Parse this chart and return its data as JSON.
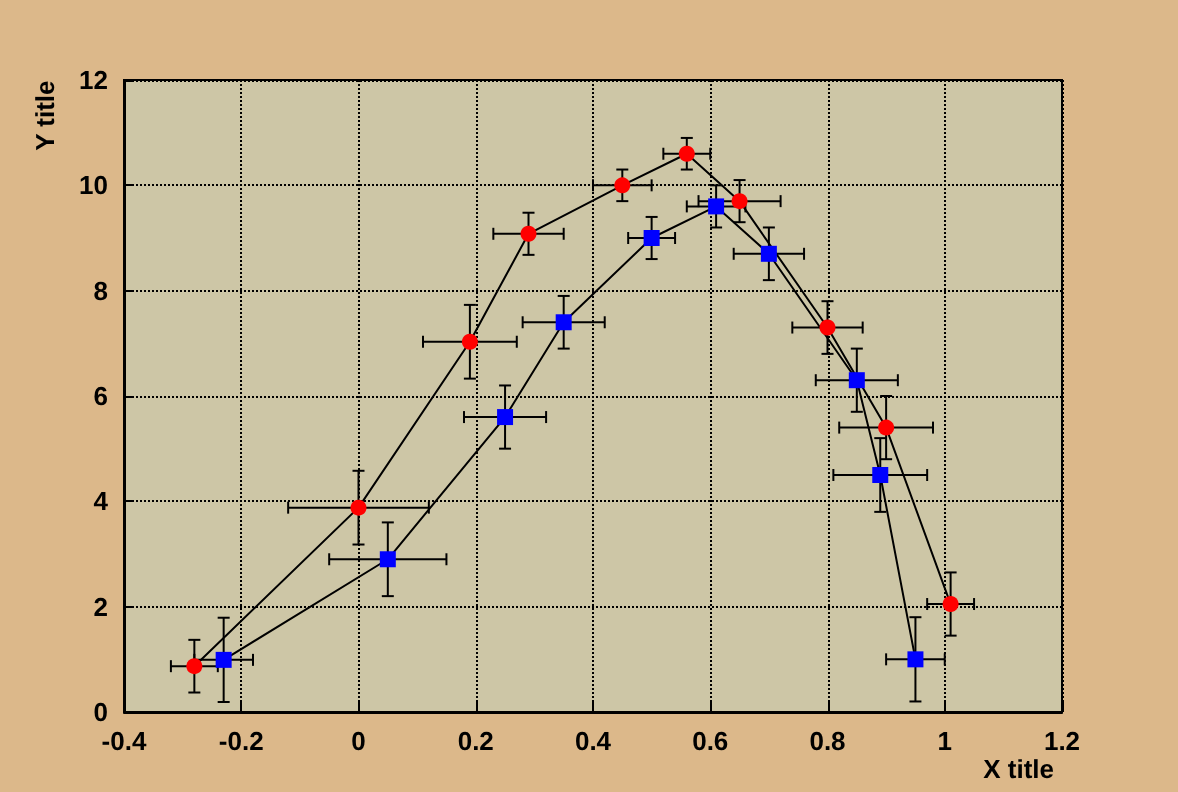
{
  "chart_data": {
    "type": "line",
    "xlabel": "X title",
    "ylabel": "Y title",
    "xlim": [
      -0.4,
      1.2
    ],
    "xticks": [
      -0.4,
      -0.2,
      0,
      0.2,
      0.4,
      0.6,
      0.8,
      1,
      1.2
    ],
    "ylim": [
      0,
      12
    ],
    "yticks": [
      0,
      2,
      4,
      6,
      8,
      10,
      12
    ],
    "grid": true,
    "line_style": "solid",
    "series": [
      {
        "color": "#000000",
        "colors": [
          "#ff0000",
          "#ff0000",
          "#ff0000",
          "#ff0000",
          "#ff0000",
          "#ff0000",
          "#ff0000",
          "#ff0000",
          "#ff0000",
          "#ff0000"
        ],
        "marker": "circle",
        "x": [
          -0.28,
          0.0,
          0.19,
          0.29,
          0.45,
          0.56,
          0.65,
          0.8,
          0.9,
          1.01
        ],
        "values": [
          0.87,
          3.88,
          7.03,
          9.08,
          10.0,
          10.6,
          9.7,
          7.3,
          5.4,
          2.05
        ],
        "xerrors": [
          0.04,
          0.12,
          0.08,
          0.06,
          0.05,
          0.04,
          0.07,
          0.06,
          0.08,
          0.04
        ],
        "errors": [
          0.5,
          0.7,
          0.7,
          0.4,
          0.3,
          0.3,
          0.4,
          0.5,
          0.6,
          0.6
        ]
      },
      {
        "color": "#000000",
        "colors": [
          "#0000ff",
          "#0000ff",
          "#0000ff",
          "#0000ff",
          "#0000ff",
          "#0000ff",
          "#0000ff",
          "#0000ff",
          "#0000ff",
          "#0000ff"
        ],
        "marker": "square",
        "x": [
          -0.23,
          0.05,
          0.25,
          0.35,
          0.5,
          0.61,
          0.7,
          0.85,
          0.89,
          0.95
        ],
        "values": [
          0.99,
          2.9,
          5.6,
          7.4,
          9.0,
          9.6,
          8.7,
          6.3,
          4.5,
          1.0
        ],
        "xerrors": [
          0.05,
          0.1,
          0.07,
          0.07,
          0.04,
          0.05,
          0.06,
          0.07,
          0.08,
          0.05
        ],
        "errors": [
          0.8,
          0.7,
          0.6,
          0.5,
          0.4,
          0.4,
          0.5,
          0.6,
          0.7,
          0.8
        ]
      }
    ]
  }
}
